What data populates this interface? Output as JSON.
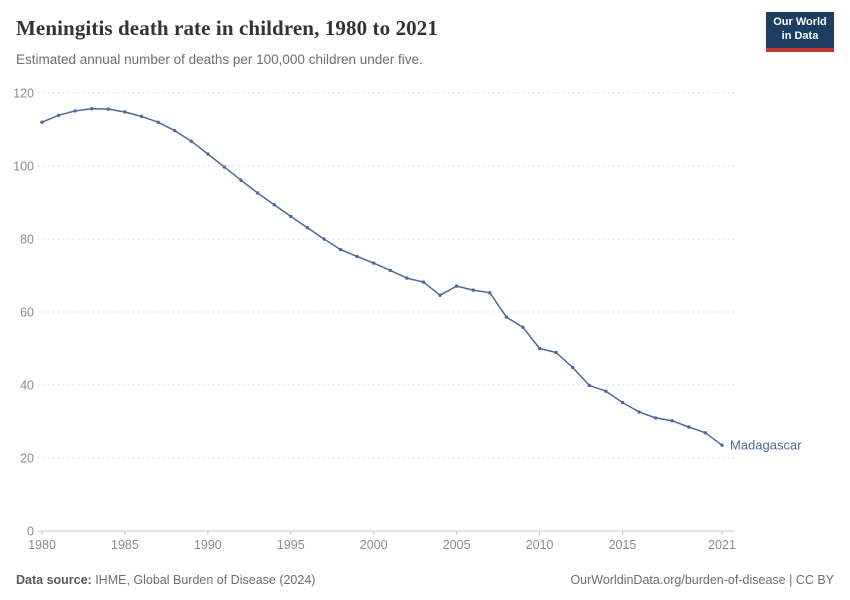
{
  "header": {
    "title": "Meningitis death rate in children, 1980 to 2021",
    "subtitle": "Estimated annual number of deaths per 100,000 children under five.",
    "logo": {
      "line1": "Our World",
      "line2": "in Data",
      "bg_color": "#1d3d63",
      "accent_color": "#c0392b"
    }
  },
  "chart_data": {
    "type": "line",
    "title": "Meningitis death rate in children, 1980 to 2021",
    "xlabel": "",
    "ylabel": "Estimated annual number of deaths per 100,000 children under five",
    "xlim": [
      1980,
      2021
    ],
    "ylim": [
      0,
      120
    ],
    "x_ticks": [
      1980,
      1985,
      1990,
      1995,
      2000,
      2005,
      2010,
      2015,
      2021
    ],
    "y_ticks": [
      0,
      20,
      40,
      60,
      80,
      100,
      120
    ],
    "grid": "horizontal-dotted",
    "legend_position": "end-of-line",
    "series": [
      {
        "name": "Madagascar",
        "color": "#4c6a9c",
        "x": [
          1980,
          1981,
          1982,
          1983,
          1984,
          1985,
          1986,
          1987,
          1988,
          1989,
          1990,
          1991,
          1992,
          1993,
          1994,
          1995,
          1996,
          1997,
          1998,
          1999,
          2000,
          2001,
          2002,
          2003,
          2004,
          2005,
          2006,
          2007,
          2008,
          2009,
          2010,
          2011,
          2012,
          2013,
          2014,
          2015,
          2016,
          2017,
          2018,
          2019,
          2020,
          2021
        ],
        "values": [
          112.0,
          113.9,
          115.1,
          115.7,
          115.6,
          114.8,
          113.6,
          112.0,
          109.7,
          106.8,
          103.3,
          99.7,
          96.1,
          92.6,
          89.4,
          86.2,
          83.1,
          80.0,
          77.1,
          75.2,
          73.4,
          71.4,
          69.3,
          68.2,
          64.6,
          67.1,
          66.0,
          65.3,
          58.6,
          55.8,
          50.0,
          48.9,
          44.8,
          39.9,
          38.3,
          35.2,
          32.6,
          31.0,
          30.2,
          28.5,
          26.9,
          23.5
        ]
      }
    ]
  },
  "footer": {
    "source_label": "Data source:",
    "source_text": " IHME, Global Burden of Disease (2024)",
    "credit": "OurWorldinData.org/burden-of-disease | CC BY"
  }
}
